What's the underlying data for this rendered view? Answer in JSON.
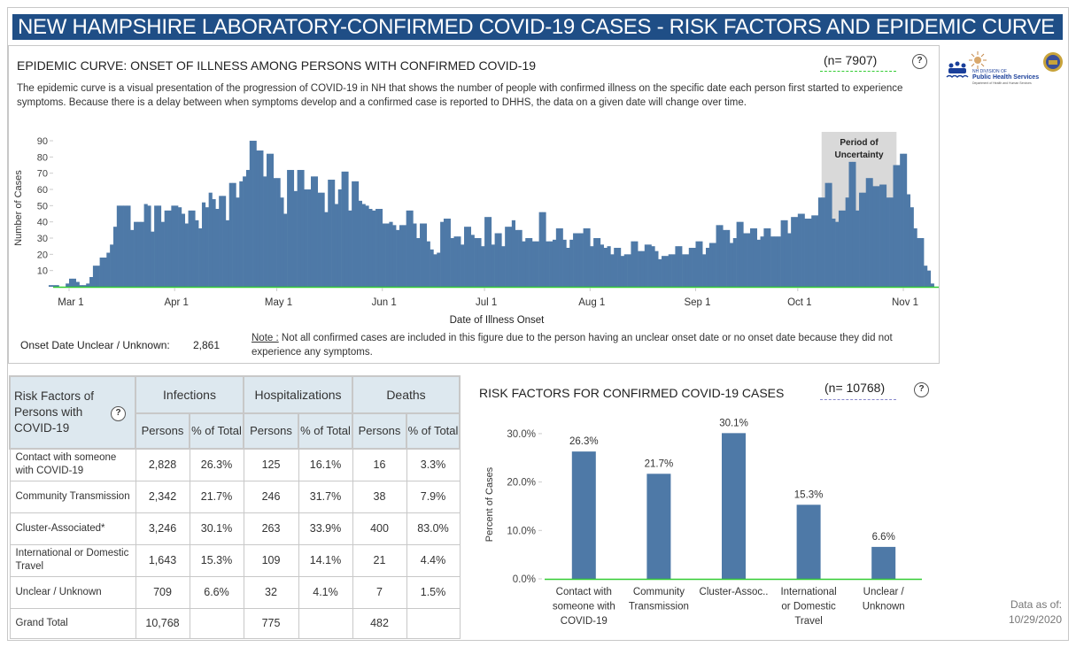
{
  "banner": {
    "title": "NEW HAMPSHIRE LABORATORY-CONFIRMED COVID-19 CASES - RISK FACTORS AND EPIDEMIC CURVE"
  },
  "epi": {
    "title": "EPIDEMIC CURVE: ONSET OF ILLNESS AMONG PERSONS WITH CONFIRMED COVID-19",
    "n_label": "(n= 7907)",
    "help_label": "?",
    "description": "The epidemic curve is a visual presentation of the progression of COVID-19 in NH that shows the number of people with confirmed illness on the specific date each person first started to experience symptoms. Because there is a delay between when symptoms develop and a confirmed case is reported to DHHS, the data on a given date will change over time.",
    "onset_unknown_label": "Onset Date Unclear / Unknown:",
    "onset_unknown_value": "2,861",
    "note_label": "Note :",
    "note_text": "  Not all confirmed cases are included in this figure due to the person having an unclear onset date or no onset date because they did not experience any symptoms."
  },
  "logo": {
    "line1": "NH DIVISION OF",
    "line2": "Public Health Services",
    "line3": "Department of Health and Human Services"
  },
  "table": {
    "corner_label": "Risk Factors of Persons with COVID-19",
    "help_label": "?",
    "groups": [
      "Infections",
      "Hospitalizations",
      "Deaths"
    ],
    "subheaders": [
      "Persons",
      "% of Total",
      "Persons",
      "% of Total",
      "Persons",
      "% of Total"
    ],
    "rows": [
      {
        "label": "Contact with someone with COVID-19",
        "values": [
          "2,828",
          "26.3%",
          "125",
          "16.1%",
          "16",
          "3.3%"
        ]
      },
      {
        "label": "Community Transmission",
        "values": [
          "2,342",
          "21.7%",
          "246",
          "31.7%",
          "38",
          "7.9%"
        ]
      },
      {
        "label": "Cluster-Associated*",
        "values": [
          "3,246",
          "30.1%",
          "263",
          "33.9%",
          "400",
          "83.0%"
        ]
      },
      {
        "label": "International or Domestic Travel",
        "values": [
          "1,643",
          "15.3%",
          "109",
          "14.1%",
          "21",
          "4.4%"
        ]
      },
      {
        "label": "Unclear / Unknown",
        "values": [
          "709",
          "6.6%",
          "32",
          "4.1%",
          "7",
          "1.5%"
        ]
      },
      {
        "label": "Grand Total",
        "values": [
          "10,768",
          "",
          "775",
          "",
          "482",
          ""
        ]
      }
    ]
  },
  "risk_chart": {
    "title": "RISK FACTORS FOR CONFIRMED COVID-19 CASES",
    "n_label": "(n= 10768)",
    "help_label": "?"
  },
  "asof": {
    "label": "Data as of:",
    "date": "10/29/2020"
  },
  "colors": {
    "banner": "#1f4e86",
    "bar": "#4e79a7",
    "uncertainty": "#d9d9d9",
    "baseline": "#33cc33"
  },
  "chart_data": [
    {
      "type": "bar",
      "title": "EPIDEMIC CURVE: ONSET OF ILLNESS AMONG PERSONS WITH CONFIRMED COVID-19",
      "xlabel": "Date of Illness Onset",
      "ylabel": "Number of Cases",
      "ylim": [
        0,
        95
      ],
      "yticks": [
        10,
        20,
        30,
        40,
        50,
        60,
        70,
        80,
        90
      ],
      "xtick_labels": [
        "Mar 1",
        "Apr 1",
        "May 1",
        "Jun 1",
        "Jul 1",
        "Aug 1",
        "Sep 1",
        "Oct 1",
        "Nov 1"
      ],
      "xtick_dates": [
        "2020-03-01",
        "2020-04-01",
        "2020-05-01",
        "2020-06-01",
        "2020-07-01",
        "2020-08-01",
        "2020-09-01",
        "2020-10-01",
        "2020-11-01"
      ],
      "start_date": "2020-02-24",
      "values": [
        1,
        1,
        1,
        0,
        0,
        2,
        5,
        5,
        3,
        1,
        1,
        2,
        6,
        13,
        13,
        18,
        18,
        21,
        26,
        37,
        50,
        50,
        50,
        50,
        35,
        40,
        40,
        40,
        51,
        50,
        34,
        50,
        50,
        40,
        47,
        47,
        50,
        50,
        49,
        45,
        39,
        47,
        47,
        41,
        36,
        52,
        49,
        58,
        54,
        48,
        56,
        56,
        41,
        64,
        64,
        55,
        65,
        68,
        72,
        90,
        90,
        84,
        84,
        68,
        82,
        82,
        67,
        67,
        55,
        45,
        72,
        72,
        59,
        72,
        72,
        60,
        60,
        68,
        68,
        58,
        58,
        46,
        66,
        66,
        51,
        60,
        71,
        71,
        47,
        65,
        65,
        53,
        51,
        50,
        48,
        47,
        48,
        48,
        39,
        39,
        40,
        38,
        35,
        38,
        38,
        47,
        47,
        39,
        30,
        39,
        39,
        28,
        23,
        20,
        21,
        40,
        42,
        42,
        30,
        31,
        31,
        26,
        37,
        37,
        32,
        30,
        30,
        25,
        43,
        43,
        26,
        33,
        33,
        25,
        37,
        37,
        41,
        35,
        35,
        28,
        30,
        30,
        28,
        28,
        46,
        46,
        28,
        28,
        29,
        36,
        36,
        29,
        24,
        29,
        33,
        33,
        33,
        36,
        36,
        25,
        30,
        30,
        26,
        24,
        25,
        20,
        24,
        24,
        19,
        20,
        20,
        28,
        28,
        22,
        22,
        26,
        26,
        25,
        22,
        17,
        19,
        19,
        20,
        20,
        25,
        25,
        20,
        20,
        24,
        24,
        28,
        28,
        20,
        24,
        27,
        27,
        38,
        38,
        35,
        35,
        27,
        30,
        40,
        40,
        33,
        33,
        36,
        36,
        29,
        31,
        36,
        36,
        31,
        31,
        31,
        41,
        41,
        33,
        43,
        43,
        45,
        45,
        42,
        42,
        44,
        44,
        55,
        55,
        64,
        64,
        42,
        40,
        47,
        47,
        55,
        77,
        77,
        47,
        58,
        58,
        67,
        67,
        62,
        62,
        63,
        63,
        55,
        55,
        75,
        75,
        82,
        82,
        57,
        49,
        36,
        30,
        30,
        13,
        10,
        2,
        0
      ]
    },
    {
      "type": "bar",
      "title": "RISK FACTORS FOR CONFIRMED COVID-19 CASES",
      "xlabel": "",
      "ylabel": "Percent of Cases",
      "ylim": [
        0,
        32
      ],
      "yticks": [
        "0.0%",
        "10.0%",
        "20.0%",
        "30.0%"
      ],
      "ytick_values": [
        0,
        10,
        20,
        30
      ],
      "categories": [
        "Contact with someone with COVID-19",
        "Community Transmission",
        "Cluster-Assoc..",
        "International or Domestic Travel",
        "Unclear / Unknown"
      ],
      "category_lines": [
        [
          "Contact with",
          "someone with",
          "COVID-19"
        ],
        [
          "Community",
          "Transmission"
        ],
        [
          "Cluster-Assoc.."
        ],
        [
          "International",
          "or Domestic",
          "Travel"
        ],
        [
          "Unclear /",
          "Unknown"
        ]
      ],
      "values": [
        26.3,
        21.7,
        30.1,
        15.3,
        6.6
      ],
      "data_labels": [
        "26.3%",
        "21.7%",
        "30.1%",
        "15.3%",
        "6.6%"
      ]
    }
  ],
  "annotations": {
    "uncertainty_label_line1": "Period of",
    "uncertainty_label_line2": "Uncertainty",
    "uncertainty_start": "2020-10-08",
    "uncertainty_end": "2020-10-29"
  }
}
